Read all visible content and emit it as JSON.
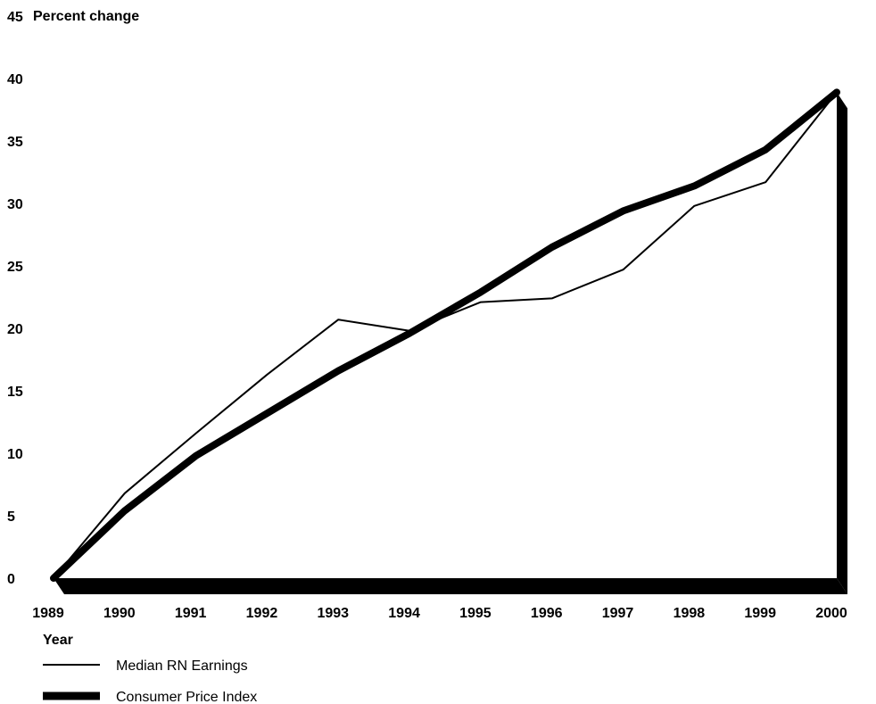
{
  "chart_data": {
    "type": "line",
    "ylabel": "Percent change",
    "xlabel": "Year",
    "x": [
      "1989",
      "1990",
      "1991",
      "1992",
      "1993",
      "1994",
      "1995",
      "1996",
      "1997",
      "1998",
      "1999",
      "2000"
    ],
    "y_ticks": [
      0,
      5,
      10,
      15,
      20,
      25,
      30,
      35,
      40,
      45
    ],
    "ylim": [
      0,
      45
    ],
    "grid": false,
    "legend_position": "bottom-left",
    "series": [
      {
        "name": "Median RN Earnings",
        "values": [
          0,
          6.8,
          11.6,
          16.3,
          20.7,
          19.8,
          22.1,
          22.4,
          24.7,
          29.8,
          31.7,
          38.9
        ],
        "style": "thin"
      },
      {
        "name": "Consumer Price Index",
        "values": [
          0,
          5.4,
          9.8,
          13.2,
          16.6,
          19.6,
          22.9,
          26.5,
          29.4,
          31.4,
          34.3,
          38.9
        ],
        "style": "thick"
      }
    ],
    "colors": {
      "line": "#000000",
      "background": "#ffffff"
    }
  }
}
